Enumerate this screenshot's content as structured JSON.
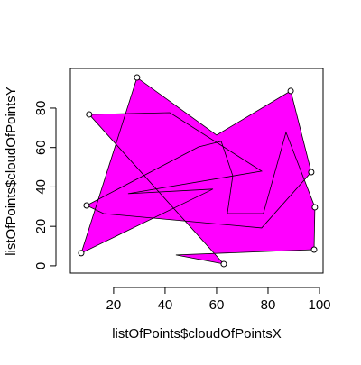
{
  "chart_data": {
    "type": "polygon",
    "xlabel": "listOfPoints$cloudOfPointsX",
    "ylabel": "listOfPoints$cloudOfPointsY",
    "fill": "#ff00ff",
    "polygon": {
      "x": [
        7.4,
        29.1,
        60.0,
        88.8,
        96.8,
        77.5,
        16.1,
        9.5,
        53.0,
        61.8,
        66.3,
        64.2,
        78.2,
        87.0,
        98.2,
        97.9,
        44.2,
        62.8,
        10.5,
        41.8,
        77.5,
        25.6,
        58.6
      ],
      "y": [
        6.4,
        95.5,
        66.3,
        88.7,
        47.5,
        19.2,
        26.5,
        30.6,
        60.3,
        63.1,
        45.7,
        26.5,
        26.5,
        67.7,
        29.7,
        8.2,
        5.5,
        0.9,
        76.8,
        77.7,
        48.0,
        36.6,
        38.9
      ]
    },
    "points": {
      "x": [
        7.4,
        29.1,
        10.5,
        88.8,
        96.8,
        98.2,
        9.5,
        97.9,
        62.8
      ],
      "y": [
        6.4,
        95.5,
        76.8,
        88.7,
        47.5,
        29.7,
        30.6,
        8.2,
        0.9
      ]
    },
    "xlim": [
      3.2,
      101.4
    ],
    "ylim": [
      -3.7,
      100.1
    ],
    "xticks": [
      20,
      40,
      60,
      80,
      100
    ],
    "yticks": [
      0,
      20,
      40,
      60,
      80
    ]
  }
}
